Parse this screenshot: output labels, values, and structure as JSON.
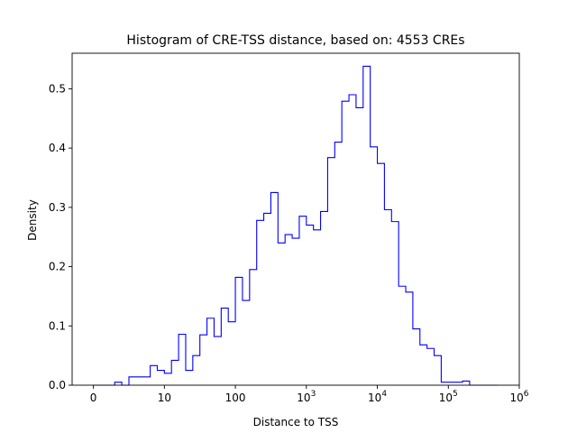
{
  "chart_data": {
    "type": "histogram",
    "title": "Histogram of CRE-TSS distance, based on: 4553 CREs",
    "xlabel": "Distance to TSS",
    "ylabel": "Density",
    "xscale": "symlog",
    "xlim": [
      -0.3,
      6.0
    ],
    "ylim": [
      0,
      0.56
    ],
    "grid": false,
    "legend": "none",
    "line_color": "#0000ff",
    "x_ticks": [
      {
        "value": 0,
        "label": "0"
      },
      {
        "value": 1,
        "label": "10"
      },
      {
        "value": 2,
        "label": "100"
      },
      {
        "value": 3,
        "label": "10",
        "sup": "3"
      },
      {
        "value": 4,
        "label": "10",
        "sup": "4"
      },
      {
        "value": 5,
        "label": "10",
        "sup": "5"
      },
      {
        "value": 6,
        "label": "10",
        "sup": "6"
      }
    ],
    "y_ticks": [
      {
        "value": 0.0,
        "label": "0.0"
      },
      {
        "value": 0.1,
        "label": "0.1"
      },
      {
        "value": 0.2,
        "label": "0.2"
      },
      {
        "value": 0.3,
        "label": "0.3"
      },
      {
        "value": 0.4,
        "label": "0.4"
      },
      {
        "value": 0.5,
        "label": "0.5"
      }
    ],
    "bin_edges_decades": [
      0.0,
      0.1,
      0.2,
      0.3,
      0.4,
      0.5,
      0.6,
      0.7,
      0.8,
      0.9,
      1.0,
      1.1,
      1.2,
      1.3,
      1.4,
      1.5,
      1.6,
      1.7,
      1.8,
      1.9,
      2.0,
      2.1,
      2.2,
      2.3,
      2.4,
      2.5,
      2.6,
      2.7,
      2.8,
      2.9,
      3.0,
      3.1,
      3.2,
      3.3,
      3.4,
      3.5,
      3.6,
      3.7,
      3.8,
      3.9,
      4.0,
      4.1,
      4.2,
      4.3,
      4.4,
      4.5,
      4.6,
      4.7,
      4.8,
      4.9,
      5.0,
      5.1,
      5.2,
      5.3,
      5.4,
      5.5,
      5.6,
      5.7
    ],
    "densities": [
      0.0,
      0.0,
      0.0,
      0.005,
      0.0,
      0.014,
      0.014,
      0.014,
      0.033,
      0.025,
      0.02,
      0.042,
      0.086,
      0.025,
      0.05,
      0.085,
      0.113,
      0.082,
      0.13,
      0.107,
      0.182,
      0.143,
      0.195,
      0.278,
      0.29,
      0.325,
      0.24,
      0.254,
      0.248,
      0.285,
      0.27,
      0.262,
      0.293,
      0.384,
      0.41,
      0.479,
      0.49,
      0.468,
      0.538,
      0.402,
      0.374,
      0.296,
      0.276,
      0.167,
      0.157,
      0.095,
      0.068,
      0.062,
      0.05,
      0.005,
      0.005,
      0.005,
      0.007,
      0.0,
      0.0,
      0.0,
      0.0
    ]
  }
}
